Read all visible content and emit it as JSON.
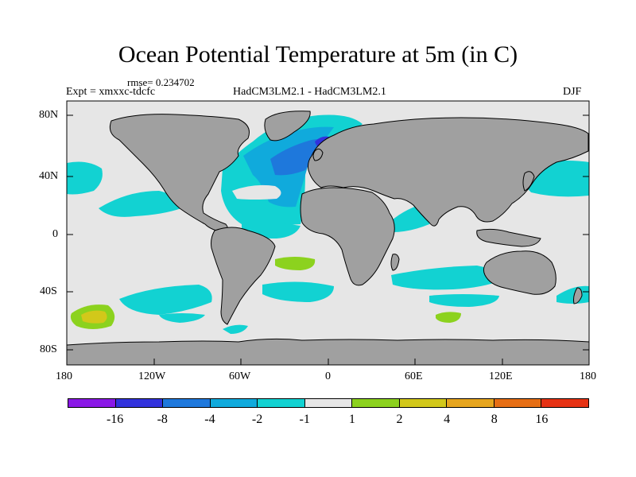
{
  "title": "Ocean Potential Temperature at 5m (in C)",
  "rmse": "rmse= 0.234702",
  "expt": "Expt = xmxxc-tdcfc",
  "center_label": "HadCM3LM2.1 - HadCM3LM2.1",
  "season": "DJF",
  "lat_ticks": [
    "80N",
    "40N",
    "0",
    "40S",
    "80S"
  ],
  "lon_ticks": [
    "180",
    "120W",
    "60W",
    "0",
    "60E",
    "120E",
    "180"
  ],
  "colorbar": {
    "labels": [
      "-16",
      "-8",
      "-4",
      "-2",
      "-1",
      "1",
      "2",
      "4",
      "8",
      "16"
    ],
    "colors": [
      "#8a18e6",
      "#3232dc",
      "#1e78dc",
      "#10aadc",
      "#12d2d2",
      "#e6e6e6",
      "#8cd21e",
      "#d2c81a",
      "#e6a51e",
      "#e66e14",
      "#e63214"
    ]
  },
  "colors": {
    "land": "#a0a0a0",
    "ocean": "#e6e6e6"
  }
}
